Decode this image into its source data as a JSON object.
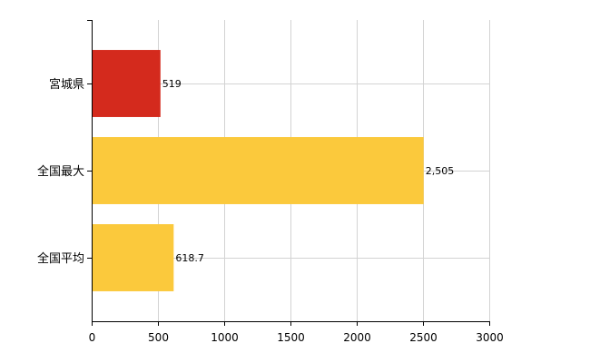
{
  "chart_data": {
    "type": "bar",
    "orientation": "horizontal",
    "categories": [
      "宮城県",
      "全国最大",
      "全国平均"
    ],
    "values": [
      519,
      2505,
      618.7
    ],
    "value_labels": [
      "519",
      "2,505",
      "618.7"
    ],
    "colors": [
      "#d42a1d",
      "#fbc93c",
      "#fbc93c"
    ],
    "xlim": [
      0,
      3000
    ],
    "xticks": [
      0,
      500,
      1000,
      1500,
      2000,
      2500,
      3000
    ],
    "grid": true,
    "title": "",
    "xlabel": "",
    "ylabel": ""
  }
}
